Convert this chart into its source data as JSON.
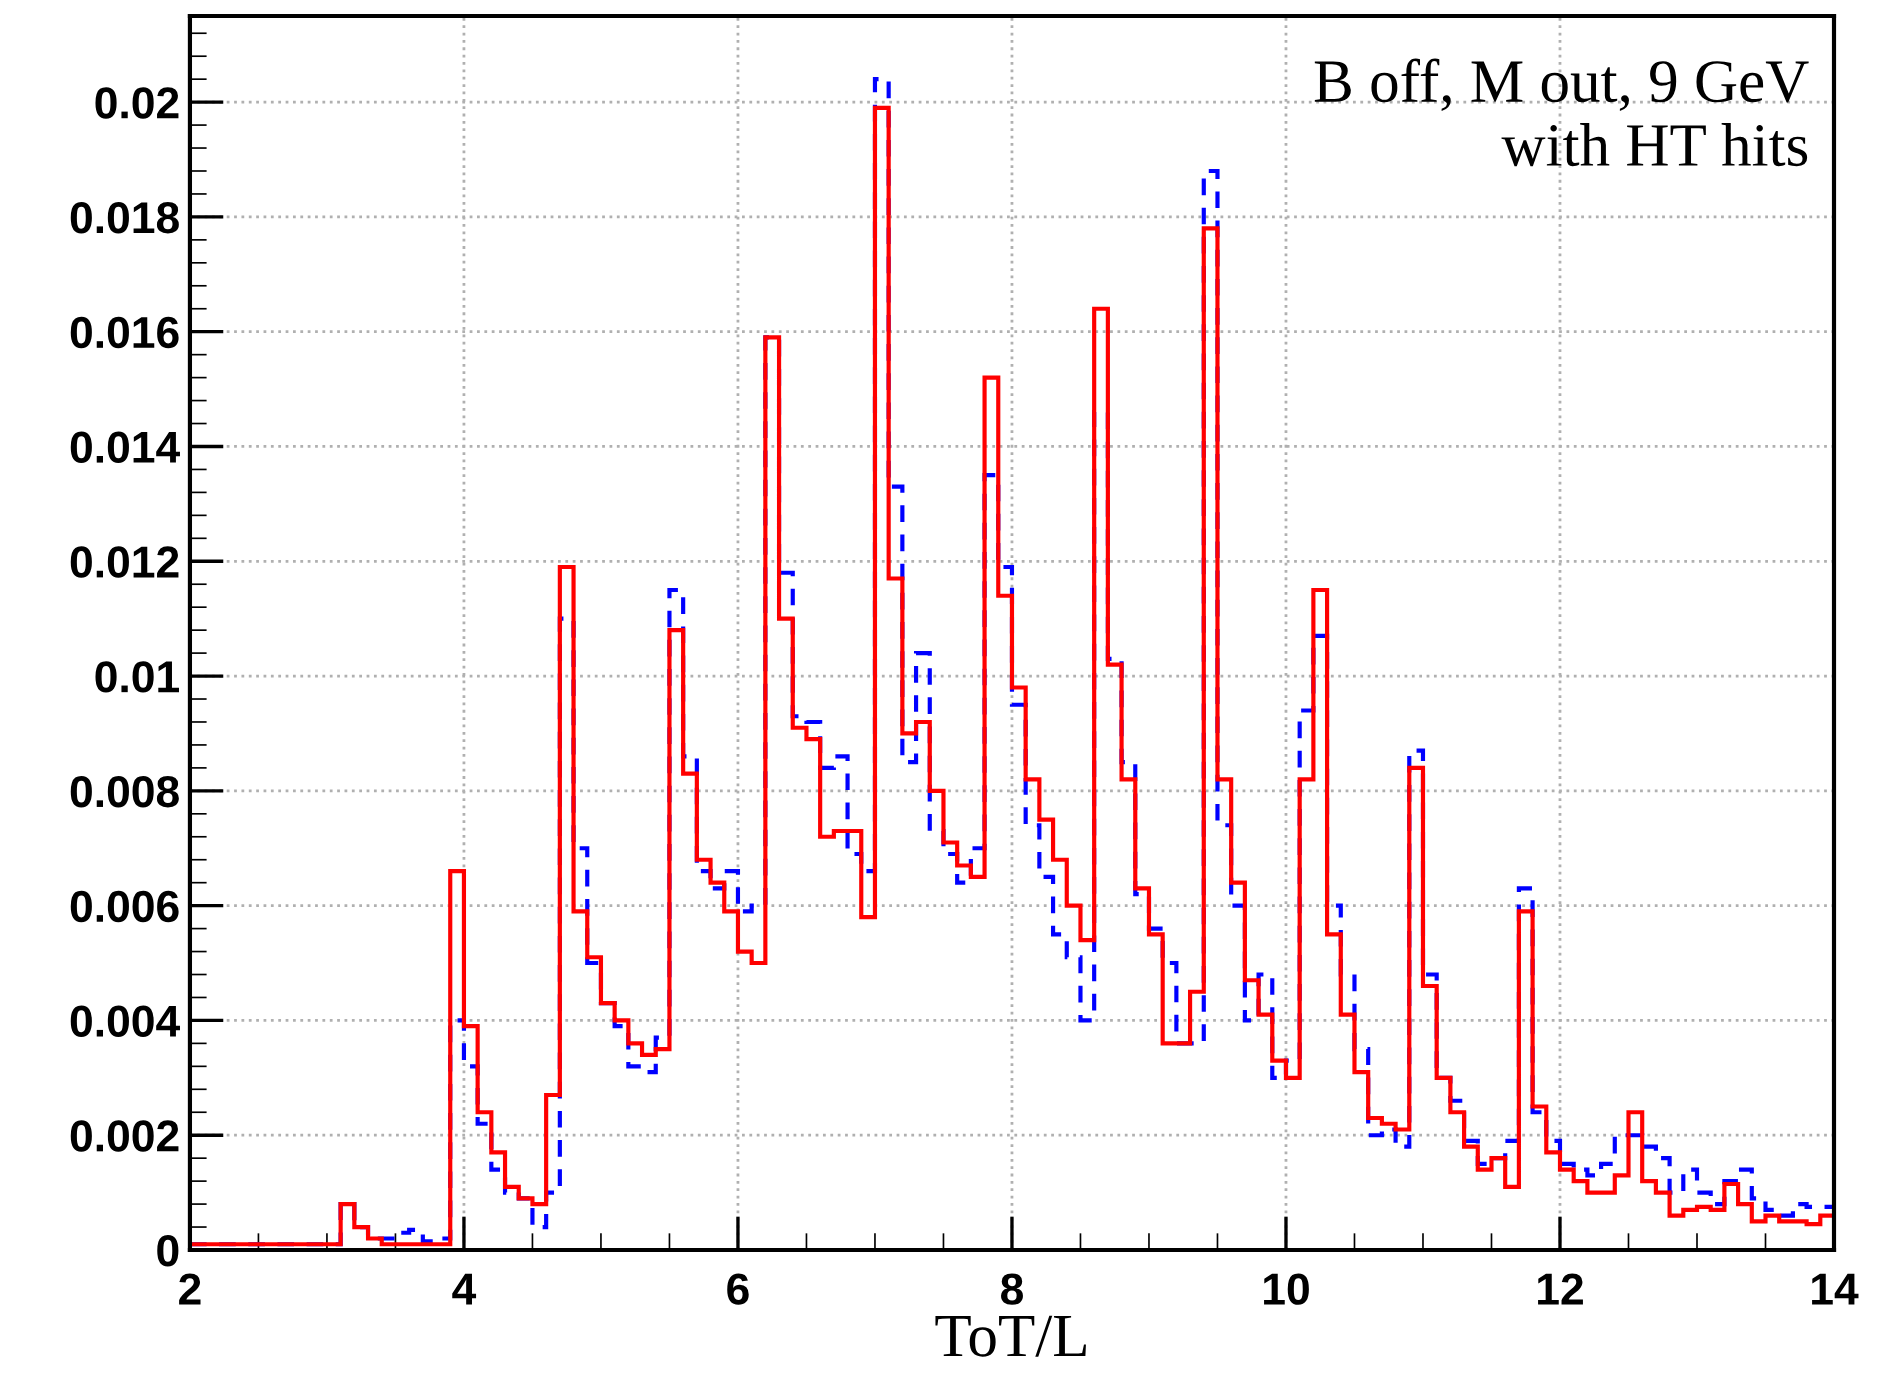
{
  "chart_data": {
    "type": "histogram",
    "xlabel": "ToT/L",
    "annotations": [
      "B off, M out, 9 GeV\nwith HT hits"
    ],
    "bins": [
      2.0,
      2.1,
      2.2,
      2.3,
      2.4,
      2.5,
      2.6,
      2.7,
      2.8,
      2.9,
      3.0,
      3.1,
      3.2,
      3.3,
      3.4,
      3.5,
      3.6,
      3.7,
      3.8,
      3.9,
      4.0,
      4.1,
      4.2,
      4.3,
      4.4,
      4.5,
      4.6,
      4.7,
      4.8,
      4.9,
      5.0,
      5.1,
      5.2,
      5.3,
      5.4,
      5.5,
      5.6,
      5.7,
      5.8,
      5.9,
      6.0,
      6.1,
      6.2,
      6.3,
      6.4,
      6.5,
      6.6,
      6.7,
      6.8,
      6.9,
      7.0,
      7.1,
      7.2,
      7.3,
      7.4,
      7.5,
      7.6,
      7.7,
      7.8,
      7.9,
      8.0,
      8.1,
      8.2,
      8.3,
      8.4,
      8.5,
      8.6,
      8.7,
      8.8,
      8.9,
      9.0,
      9.1,
      9.2,
      9.3,
      9.4,
      9.5,
      9.6,
      9.7,
      9.8,
      9.9,
      10.0,
      10.1,
      10.2,
      10.3,
      10.4,
      10.5,
      10.6,
      10.7,
      10.8,
      10.9,
      11.0,
      11.1,
      11.2,
      11.3,
      11.4,
      11.5,
      11.6,
      11.7,
      11.8,
      11.9,
      12.0,
      12.1,
      12.2,
      12.3,
      12.4,
      12.5,
      12.6,
      12.7,
      12.8,
      12.9,
      13.0,
      13.1,
      13.2,
      13.3,
      13.4,
      13.5,
      13.6,
      13.7,
      13.8,
      13.9,
      14.0
    ],
    "series": [
      {
        "color": "#0000ff",
        "line_style": "dashed",
        "values": [
          0.0001,
          0.0001,
          0.0001,
          0.0001,
          0.0001,
          0.0001,
          0.0001,
          0.0001,
          0.0001,
          0.0001,
          0.0001,
          0.0008,
          0.0004,
          0.0002,
          0.0002,
          0.0003,
          0.00035,
          0.00015,
          0.0002,
          0.004,
          0.0032,
          0.0022,
          0.0014,
          0.001,
          0.0009,
          0.0004,
          0.001,
          0.011,
          0.007,
          0.005,
          0.0043,
          0.0039,
          0.0032,
          0.0031,
          0.0037,
          0.0115,
          0.0086,
          0.0066,
          0.0063,
          0.0066,
          0.0059,
          0.006,
          0.0159,
          0.0118,
          0.0093,
          0.0092,
          0.0084,
          0.0086,
          0.0069,
          0.0066,
          0.0204,
          0.0133,
          0.0085,
          0.0104,
          0.0073,
          0.0069,
          0.0064,
          0.007,
          0.0135,
          0.0119,
          0.0095,
          0.0074,
          0.0065,
          0.0055,
          0.0051,
          0.004,
          0.0146,
          0.0103,
          0.0085,
          0.0062,
          0.0056,
          0.005,
          0.0036,
          0.0036,
          0.0188,
          0.0074,
          0.006,
          0.004,
          0.0048,
          0.003,
          0.0033,
          0.0094,
          0.0107,
          0.006,
          0.0048,
          0.0035,
          0.002,
          0.0021,
          0.0018,
          0.0087,
          0.0048,
          0.003,
          0.0026,
          0.0019,
          0.0015,
          0.0016,
          0.0019,
          0.0063,
          0.0024,
          0.0019,
          0.0015,
          0.0014,
          0.0013,
          0.0015,
          0.002,
          0.002,
          0.0018,
          0.0016,
          0.001,
          0.0014,
          0.001,
          0.0008,
          0.0012,
          0.0014,
          0.0009,
          0.0007,
          0.0006,
          0.0008,
          0.00075,
          0.00075
        ]
      },
      {
        "color": "#ff0000",
        "line_style": "solid",
        "values": [
          0.0001,
          0.0001,
          0.0001,
          0.0001,
          0.0001,
          0.0001,
          0.0001,
          0.0001,
          0.0001,
          0.0001,
          0.0001,
          0.0008,
          0.0004,
          0.0002,
          0.0001,
          0.0001,
          0.0001,
          0.0001,
          0.0001,
          0.0066,
          0.0039,
          0.0024,
          0.0017,
          0.0011,
          0.0009,
          0.0008,
          0.0027,
          0.0119,
          0.0059,
          0.0051,
          0.0043,
          0.004,
          0.0036,
          0.0034,
          0.0035,
          0.0108,
          0.0083,
          0.0068,
          0.0064,
          0.0059,
          0.0052,
          0.005,
          0.0159,
          0.011,
          0.0091,
          0.0089,
          0.0072,
          0.0073,
          0.0073,
          0.0058,
          0.0199,
          0.0117,
          0.009,
          0.0092,
          0.008,
          0.0071,
          0.0067,
          0.0065,
          0.0152,
          0.0114,
          0.0098,
          0.0082,
          0.0075,
          0.0068,
          0.006,
          0.0054,
          0.0164,
          0.0102,
          0.0082,
          0.0063,
          0.0055,
          0.0036,
          0.0036,
          0.0045,
          0.0178,
          0.0082,
          0.0064,
          0.0047,
          0.0041,
          0.0033,
          0.003,
          0.0082,
          0.0115,
          0.0055,
          0.0041,
          0.0031,
          0.0023,
          0.0022,
          0.0021,
          0.0084,
          0.0046,
          0.003,
          0.0024,
          0.0018,
          0.0014,
          0.0016,
          0.0011,
          0.0059,
          0.0025,
          0.0017,
          0.0014,
          0.0012,
          0.001,
          0.001,
          0.0013,
          0.0024,
          0.0012,
          0.001,
          0.0006,
          0.0007,
          0.00075,
          0.0007,
          0.00115,
          0.0008,
          0.0005,
          0.0006,
          0.0005,
          0.0005,
          0.00045,
          0.0006
        ]
      }
    ],
    "xlim": [
      2,
      14
    ],
    "ylim": [
      0,
      0.0215
    ],
    "xticks": [
      2,
      4,
      6,
      8,
      10,
      12,
      14
    ],
    "yticks": [
      0,
      0.002,
      0.004,
      0.006,
      0.008,
      0.01,
      0.012,
      0.014,
      0.016,
      0.018,
      0.02
    ],
    "grid": true
  }
}
